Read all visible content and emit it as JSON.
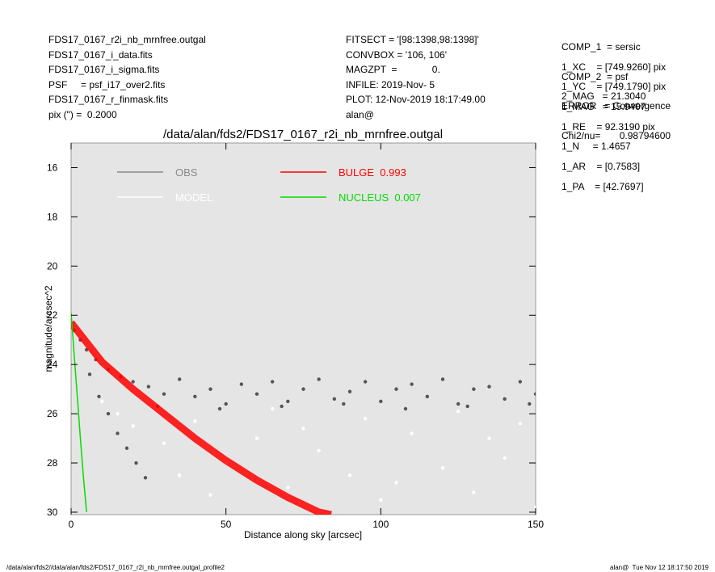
{
  "header": {
    "left": [
      "FDS17_0167_r2i_nb_mrnfree.outgal",
      "FDS17_0167_i_data.fits",
      "FDS17_0167_i_sigma.fits",
      "PSF     = psf_i17_over2.fits",
      "FDS17_0167_r_finmask.fits",
      "pix (\") =  0.2000"
    ],
    "middle": [
      "FITSECT = '[98:1398,98:1398]'",
      "CONVBOX = '106, 106'",
      "MAGZPT  =             0.",
      "INFILE: 2019-Nov- 5",
      "PLOT: 12-Nov-2019 18:17:49.00",
      "alan@"
    ],
    "right": [
      [
        "COMP_1  = sersic",
        "1_XC    = [749.9260] pix",
        "1_YC    = [749.1790] pix",
        "1_MAG   = 15.9407",
        "1_RE    = 92.3190 pix",
        "1_N     = 1.4657",
        "1_AR    = [0.7583]",
        "1_PA    = [42.7697]"
      ],
      [
        "COMP_2  = psf",
        "2_MAG   = 21.3040"
      ],
      [
        "ERROR   = Convergence"
      ],
      [
        "Chi2/nu=       0.98794600"
      ]
    ]
  },
  "footer": {
    "left": "/data/alan/fds2//data/alan/fds2/FDS17_0167_r2i_nb_mrnfree.outgal_profile2",
    "right": "alan@  Tue Nov 12 18:17:50 2019"
  },
  "chart_data": {
    "type": "scatter",
    "title": "/data/alan/fds2/FDS17_0167_r2i_nb_mrnfree.outgal",
    "x_label": "Distance along sky [arcsec]",
    "y_label": "magnitude/arcsec^2",
    "xlim": [
      0,
      150
    ],
    "ylim": [
      30.1,
      15.0
    ],
    "xticks": [
      0,
      50,
      100,
      150
    ],
    "yticks": [
      16,
      18,
      20,
      22,
      24,
      26,
      28,
      30
    ],
    "series": [
      {
        "name": "OBS",
        "color": "#555555",
        "mode": "points",
        "x": [
          1,
          3,
          5,
          8,
          12,
          16,
          6,
          9,
          12,
          15,
          18,
          21,
          24,
          20,
          25,
          30,
          35,
          40,
          45,
          50,
          55,
          60,
          65,
          70,
          75,
          80,
          85,
          90,
          95,
          100,
          105,
          110,
          115,
          120,
          125,
          130,
          135,
          140,
          145,
          150,
          28,
          48,
          68,
          88,
          108,
          128,
          148
        ],
        "values": [
          22.6,
          23.0,
          23.4,
          23.8,
          24.2,
          24.5,
          24.4,
          25.3,
          26.0,
          26.8,
          27.4,
          28.0,
          28.6,
          24.7,
          24.9,
          25.2,
          24.6,
          25.3,
          25.0,
          25.6,
          24.8,
          25.2,
          24.7,
          25.5,
          25.0,
          24.6,
          25.4,
          25.1,
          24.7,
          25.5,
          25.0,
          24.8,
          25.3,
          24.6,
          25.6,
          25.0,
          24.9,
          25.4,
          24.7,
          25.2,
          25.7,
          25.8,
          25.7,
          25.6,
          25.8,
          25.7,
          25.6
        ]
      },
      {
        "name": "MODEL",
        "color": "#ffffff",
        "mode": "points",
        "x": [
          10,
          20,
          30,
          40,
          50,
          60,
          70,
          80,
          90,
          100,
          110,
          120,
          130,
          140,
          150,
          35,
          65,
          95,
          125,
          145,
          15,
          45,
          75,
          105,
          135
        ],
        "values": [
          25.5,
          26.5,
          27.2,
          26.3,
          28.0,
          27.0,
          29.0,
          27.5,
          28.5,
          29.5,
          26.8,
          28.2,
          29.2,
          27.8,
          29.8,
          28.5,
          25.8,
          26.2,
          25.9,
          26.4,
          26.0,
          29.3,
          26.6,
          28.8,
          27.0
        ]
      },
      {
        "name": "BULGE  0.993",
        "color": "#ff0000",
        "mode": "line",
        "x": [
          0,
          10,
          20,
          30,
          40,
          50,
          60,
          70,
          80,
          84
        ],
        "values": [
          22.3,
          23.9,
          25.0,
          26.0,
          27.0,
          27.9,
          28.7,
          29.4,
          30.0,
          30.1
        ]
      },
      {
        "name": "NUCLEUS  0.007",
        "color": "#00dd00",
        "mode": "line",
        "x": [
          0,
          1,
          2,
          3,
          4,
          5
        ],
        "values": [
          21.9,
          23.6,
          25.3,
          27.0,
          28.6,
          30.0
        ]
      }
    ]
  }
}
